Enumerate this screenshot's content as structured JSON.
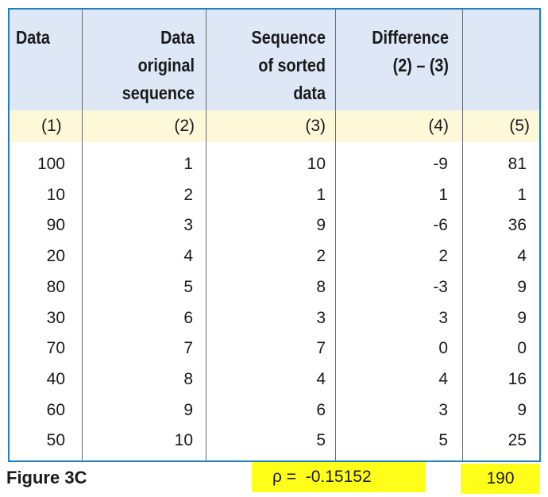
{
  "table": {
    "headers": [
      [
        "Data"
      ],
      [
        "Data",
        "original",
        "sequence"
      ],
      [
        "Sequence",
        "of sorted",
        "data"
      ],
      [
        "Difference",
        "(2) – (3)"
      ],
      []
    ],
    "column_numbers": [
      "(1)",
      "(2)",
      "(3)",
      "(4)",
      "(5)"
    ],
    "rows": [
      [
        "100",
        "1",
        "10",
        "-9",
        "81"
      ],
      [
        "10",
        "2",
        "1",
        "1",
        "1"
      ],
      [
        "90",
        "3",
        "9",
        "-6",
        "36"
      ],
      [
        "20",
        "4",
        "2",
        "2",
        "4"
      ],
      [
        "80",
        "5",
        "8",
        "-3",
        "9"
      ],
      [
        "30",
        "6",
        "3",
        "3",
        "9"
      ],
      [
        "70",
        "7",
        "7",
        "0",
        "0"
      ],
      [
        "40",
        "8",
        "4",
        "4",
        "16"
      ],
      [
        "60",
        "9",
        "6",
        "3",
        "9"
      ],
      [
        "50",
        "10",
        "5",
        "5",
        "25"
      ]
    ]
  },
  "footer": {
    "figure_label": "Figure 3C",
    "rho_label": "ρ =",
    "rho_value": "-0.15152",
    "sum_value": "190"
  },
  "colors": {
    "border": "#1f7fbf",
    "header_bg": "#dde7f5",
    "subheader_bg": "#fdf8d8",
    "highlight": "#ffff1a"
  }
}
